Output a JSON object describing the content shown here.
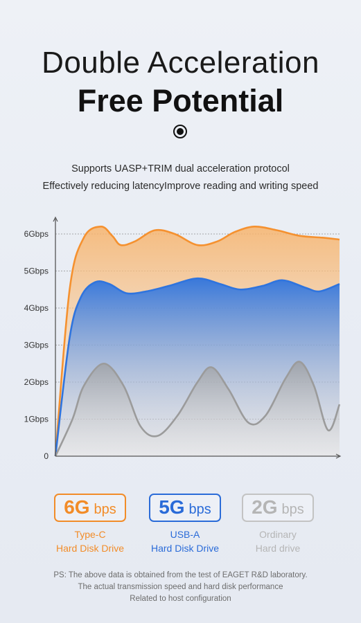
{
  "heading": {
    "line1": "Double Acceleration",
    "line2": "Free Potential"
  },
  "intro": {
    "line1": "Supports UASP+TRIM dual acceleration protocol",
    "line2": "Effectively reducing latencyImprove reading and writing speed"
  },
  "chart_data": {
    "type": "area",
    "yticks": [
      "0",
      "1Gbps",
      "2Gbps",
      "3Gbps",
      "4Gbps",
      "5Gbps",
      "6Gbps"
    ],
    "ylim": [
      0,
      6.5
    ],
    "xlim": [
      0,
      10
    ],
    "grid": true,
    "series": [
      {
        "name": "6G bps",
        "color": "#f5912f",
        "points": [
          [
            0,
            0
          ],
          [
            0.5,
            4.5
          ],
          [
            1,
            5.9
          ],
          [
            1.6,
            6.2
          ],
          [
            2,
            5.95
          ],
          [
            2.3,
            5.7
          ],
          [
            2.8,
            5.8
          ],
          [
            3.5,
            6.1
          ],
          [
            4.2,
            6.0
          ],
          [
            5,
            5.7
          ],
          [
            5.7,
            5.8
          ],
          [
            6.3,
            6.05
          ],
          [
            7,
            6.2
          ],
          [
            7.8,
            6.1
          ],
          [
            8.6,
            5.95
          ],
          [
            9.4,
            5.9
          ],
          [
            10,
            5.85
          ]
        ]
      },
      {
        "name": "5G bps",
        "color": "#2f74de",
        "points": [
          [
            0,
            0
          ],
          [
            0.5,
            3.2
          ],
          [
            0.9,
            4.3
          ],
          [
            1.4,
            4.7
          ],
          [
            1.9,
            4.65
          ],
          [
            2.5,
            4.4
          ],
          [
            3.2,
            4.45
          ],
          [
            4,
            4.6
          ],
          [
            5,
            4.8
          ],
          [
            5.8,
            4.65
          ],
          [
            6.5,
            4.5
          ],
          [
            7.3,
            4.6
          ],
          [
            8,
            4.75
          ],
          [
            8.8,
            4.55
          ],
          [
            9.3,
            4.45
          ],
          [
            10,
            4.65
          ]
        ]
      },
      {
        "name": "2G bps",
        "color": "#9b9b9b",
        "points": [
          [
            0,
            0
          ],
          [
            0.6,
            1.0
          ],
          [
            1,
            1.9
          ],
          [
            1.7,
            2.5
          ],
          [
            2.4,
            1.9
          ],
          [
            3,
            0.8
          ],
          [
            3.6,
            0.55
          ],
          [
            4.3,
            1.1
          ],
          [
            5,
            2.0
          ],
          [
            5.5,
            2.4
          ],
          [
            6.1,
            1.8
          ],
          [
            6.8,
            0.9
          ],
          [
            7.4,
            1.1
          ],
          [
            8.1,
            2.1
          ],
          [
            8.6,
            2.55
          ],
          [
            9.1,
            1.9
          ],
          [
            9.6,
            0.7
          ],
          [
            10,
            1.4
          ]
        ]
      }
    ]
  },
  "legend": [
    {
      "value": "6G",
      "unit": "bps",
      "line1": "Type-C",
      "line2": "Hard Disk Drive",
      "style": "orange"
    },
    {
      "value": "5G",
      "unit": "bps",
      "line1": "USB-A",
      "line2": "Hard Disk Drive",
      "style": "blue"
    },
    {
      "value": "2G",
      "unit": "bps",
      "line1": "Ordinary",
      "line2": "Hard drive",
      "style": "grey"
    }
  ],
  "note": {
    "line1": "PS: The above data is obtained from the test of EAGET R&D laboratory.",
    "line2": "The actual transmission speed and hard disk performance",
    "line3": "Related to host configuration"
  }
}
